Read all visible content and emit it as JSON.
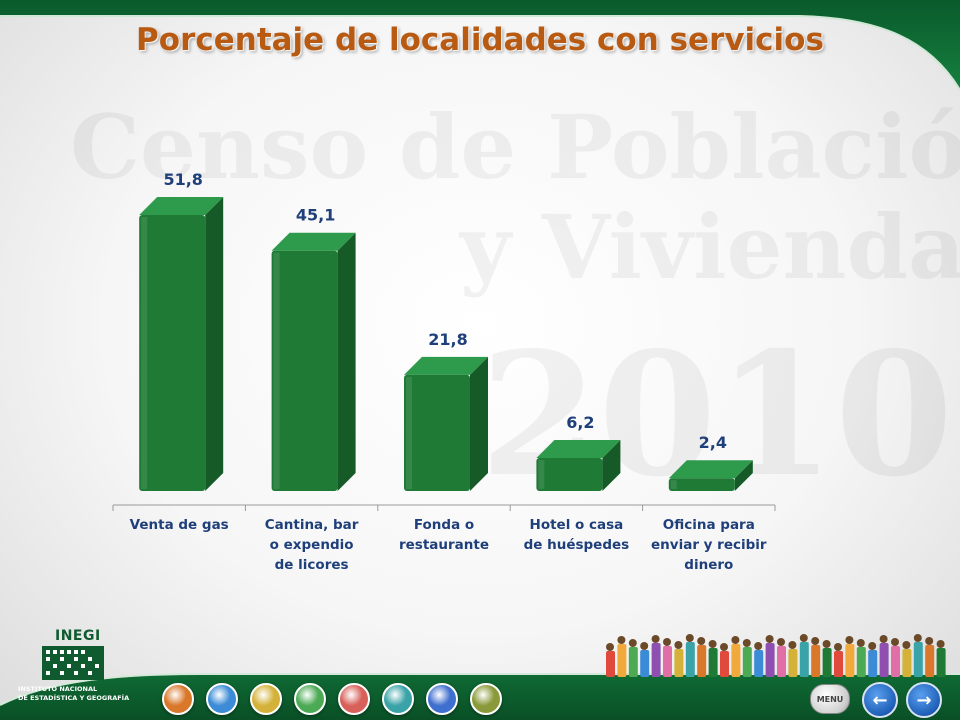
{
  "slide": {
    "title": "Porcentaje de localidades con servicios"
  },
  "watermark": {
    "line1": "Censo de Población",
    "line2": "y Vivienda",
    "year": "2010"
  },
  "chart_data": {
    "type": "bar",
    "style": "3d",
    "title": "Porcentaje de localidades con servicios",
    "categories": [
      "Venta de gas",
      "Cantina, bar o expendio de licores",
      "Fonda o restaurante",
      "Hotel o casa de huéspedes",
      "Oficina para enviar y recibir dinero"
    ],
    "category_lines": [
      [
        "Venta de gas"
      ],
      [
        "Cantina, bar",
        "o expendio",
        "de licores"
      ],
      [
        "Fonda o",
        "restaurante"
      ],
      [
        "Hotel o casa",
        "de huéspedes"
      ],
      [
        "Oficina para",
        "enviar y recibir",
        "dinero"
      ]
    ],
    "values": [
      51.8,
      45.1,
      21.8,
      6.2,
      2.4
    ],
    "data_labels": [
      "51,8",
      "45,1",
      "21,8",
      "6,2",
      "2,4"
    ],
    "ylim": [
      0,
      55
    ],
    "xlabel": "",
    "ylabel": "",
    "grid": false,
    "legend": "none",
    "bar_color": "#1f7a36",
    "label_color": "#1f3f7a"
  },
  "logo": {
    "name": "INEGI",
    "subtitle_line1": "INSTITUTO NACIONAL",
    "subtitle_line2": "DE ESTADÍSTICA Y GEOGRAFÍA"
  },
  "nav": {
    "menu_label": "MENU",
    "prev_icon": "arrow-left-icon",
    "next_icon": "arrow-right-icon",
    "prev_glyph": "←",
    "next_glyph": "→"
  },
  "theme": {
    "header_green": "#0f6b34",
    "title_color": "#b85a12"
  },
  "topic_buttons": [
    {
      "icon": "family-icon",
      "color": "#d9772a"
    },
    {
      "icon": "info-icon",
      "color": "#3b8bd6"
    },
    {
      "icon": "people-icon",
      "color": "#d4b23a"
    },
    {
      "icon": "person-icon",
      "color": "#4caa55"
    },
    {
      "icon": "house-icon",
      "color": "#d8605a"
    },
    {
      "icon": "home-icon",
      "color": "#3aa3a8"
    },
    {
      "icon": "map-icon",
      "color": "#3f6fcf"
    },
    {
      "icon": "land-icon",
      "color": "#8a9a3a"
    }
  ]
}
